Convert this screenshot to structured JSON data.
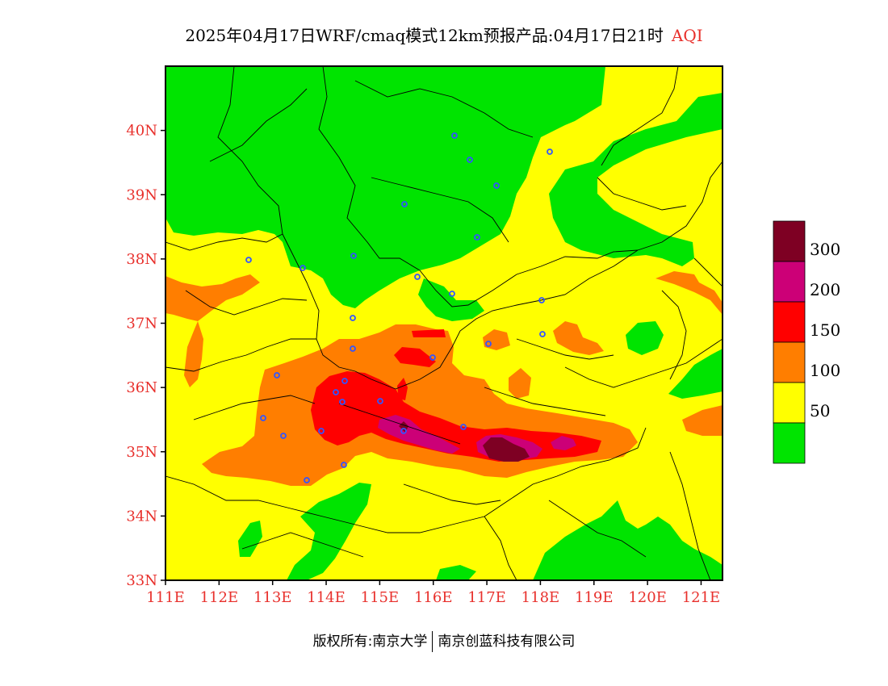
{
  "header": {
    "title": "2025年04月17日WRF/cmaq模式12km预报产品:04月17日21时",
    "tag": "AQI"
  },
  "map": {
    "lon_range": [
      111,
      121.4
    ],
    "lat_range": [
      33,
      41
    ],
    "lon_ticks": [
      "111E",
      "112E",
      "113E",
      "114E",
      "115E",
      "116E",
      "117E",
      "118E",
      "119E",
      "120E",
      "121E"
    ],
    "lat_ticks": [
      "33N",
      "34N",
      "35N",
      "36N",
      "37N",
      "38N",
      "39N",
      "40N"
    ],
    "category_colors": {
      "good": "#00e400",
      "moderate": "#ffff00",
      "usg": "#ff7e00",
      "unhealthy": "#ff0000",
      "very_unhealthy": "#cc0077",
      "hazardous": "#7e0023"
    },
    "station_marker_color": "#3355ff"
  },
  "legend": {
    "colors": [
      "#7e0023",
      "#cc0077",
      "#ff0000",
      "#ff7e00",
      "#ffff00",
      "#00e400"
    ],
    "labels": [
      "300",
      "200",
      "150",
      "100",
      "50"
    ]
  },
  "footer": {
    "left": "版权所有:南京大学",
    "right": "南京创蓝科技有限公司"
  }
}
